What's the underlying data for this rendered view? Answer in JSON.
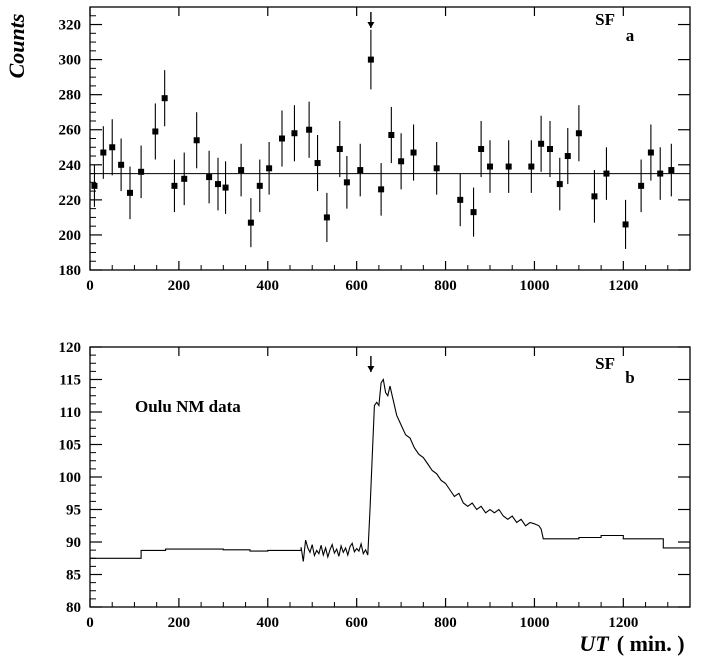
{
  "figure": {
    "ylabel": "Counts",
    "xlabel": "UT",
    "xlabel_unit": "( min. )"
  },
  "panel_a": {
    "label": "a",
    "annotation": "SF"
  },
  "panel_b": {
    "label": "b",
    "annotation": "SF",
    "text": "Oulu NM data"
  },
  "colors": {
    "ink": "#000000",
    "background": "#ffffff"
  },
  "chart_data": [
    {
      "type": "scatter",
      "panel": "a",
      "xlim": [
        0,
        1350
      ],
      "ylim": [
        180,
        330
      ],
      "xticks": [
        0,
        200,
        400,
        600,
        800,
        1000,
        1200
      ],
      "yticks": [
        180,
        200,
        220,
        240,
        260,
        280,
        300,
        320
      ],
      "reference_line_y": 235,
      "flare_time": 632,
      "points": [
        {
          "x": 10,
          "y": 228,
          "err": 12
        },
        {
          "x": 30,
          "y": 247,
          "err": 15
        },
        {
          "x": 50,
          "y": 250,
          "err": 16
        },
        {
          "x": 70,
          "y": 240,
          "err": 15
        },
        {
          "x": 90,
          "y": 224,
          "err": 15
        },
        {
          "x": 115,
          "y": 236,
          "err": 15
        },
        {
          "x": 147,
          "y": 259,
          "err": 16
        },
        {
          "x": 168,
          "y": 278,
          "err": 16
        },
        {
          "x": 190,
          "y": 228,
          "err": 15
        },
        {
          "x": 212,
          "y": 232,
          "err": 15
        },
        {
          "x": 240,
          "y": 254,
          "err": 16
        },
        {
          "x": 268,
          "y": 233,
          "err": 15
        },
        {
          "x": 288,
          "y": 229,
          "err": 15
        },
        {
          "x": 305,
          "y": 227,
          "err": 15
        },
        {
          "x": 340,
          "y": 237,
          "err": 15
        },
        {
          "x": 362,
          "y": 207,
          "err": 14
        },
        {
          "x": 382,
          "y": 228,
          "err": 15
        },
        {
          "x": 403,
          "y": 238,
          "err": 15
        },
        {
          "x": 432,
          "y": 255,
          "err": 16
        },
        {
          "x": 460,
          "y": 258,
          "err": 16
        },
        {
          "x": 493,
          "y": 260,
          "err": 16
        },
        {
          "x": 512,
          "y": 241,
          "err": 16
        },
        {
          "x": 533,
          "y": 210,
          "err": 14
        },
        {
          "x": 562,
          "y": 249,
          "err": 16
        },
        {
          "x": 578,
          "y": 230,
          "err": 15
        },
        {
          "x": 608,
          "y": 237,
          "err": 15
        },
        {
          "x": 632,
          "y": 300,
          "err": 17
        },
        {
          "x": 655,
          "y": 226,
          "err": 15
        },
        {
          "x": 678,
          "y": 257,
          "err": 16
        },
        {
          "x": 700,
          "y": 242,
          "err": 16
        },
        {
          "x": 728,
          "y": 247,
          "err": 16
        },
        {
          "x": 780,
          "y": 238,
          "err": 15
        },
        {
          "x": 833,
          "y": 220,
          "err": 15
        },
        {
          "x": 863,
          "y": 213,
          "err": 14
        },
        {
          "x": 880,
          "y": 249,
          "err": 16
        },
        {
          "x": 900,
          "y": 239,
          "err": 15
        },
        {
          "x": 942,
          "y": 239,
          "err": 15
        },
        {
          "x": 993,
          "y": 239,
          "err": 15
        },
        {
          "x": 1015,
          "y": 252,
          "err": 16
        },
        {
          "x": 1035,
          "y": 249,
          "err": 16
        },
        {
          "x": 1057,
          "y": 229,
          "err": 15
        },
        {
          "x": 1075,
          "y": 245,
          "err": 16
        },
        {
          "x": 1100,
          "y": 258,
          "err": 16
        },
        {
          "x": 1135,
          "y": 222,
          "err": 15
        },
        {
          "x": 1162,
          "y": 235,
          "err": 15
        },
        {
          "x": 1205,
          "y": 206,
          "err": 14
        },
        {
          "x": 1240,
          "y": 228,
          "err": 15
        },
        {
          "x": 1262,
          "y": 247,
          "err": 16
        },
        {
          "x": 1283,
          "y": 235,
          "err": 15
        },
        {
          "x": 1308,
          "y": 237,
          "err": 15
        }
      ]
    },
    {
      "type": "line",
      "panel": "b",
      "xlim": [
        0,
        1350
      ],
      "ylim": [
        80,
        120
      ],
      "xticks": [
        0,
        200,
        400,
        600,
        800,
        1000,
        1200
      ],
      "yticks": [
        80,
        85,
        90,
        95,
        100,
        105,
        110,
        115,
        120
      ],
      "flare_time": 632,
      "x": [
        0,
        115,
        115,
        170,
        170,
        300,
        300,
        360,
        360,
        400,
        400,
        475,
        475,
        480,
        485,
        490,
        495,
        500,
        505,
        510,
        515,
        520,
        525,
        530,
        535,
        540,
        545,
        550,
        555,
        560,
        565,
        570,
        575,
        580,
        585,
        590,
        595,
        600,
        605,
        610,
        615,
        620,
        625,
        630,
        640,
        645,
        650,
        655,
        660,
        665,
        670,
        675,
        680,
        690,
        700,
        710,
        720,
        730,
        740,
        750,
        760,
        770,
        780,
        790,
        800,
        810,
        820,
        830,
        840,
        850,
        860,
        870,
        880,
        890,
        900,
        910,
        920,
        930,
        940,
        950,
        960,
        970,
        980,
        990,
        1000,
        1010,
        1015,
        1020,
        1100,
        1100,
        1150,
        1150,
        1200,
        1200,
        1290,
        1290,
        1350
      ],
      "y": [
        87.5,
        87.5,
        88.7,
        88.7,
        88.9,
        88.9,
        88.8,
        88.8,
        88.6,
        88.6,
        88.7,
        88.7,
        89.2,
        87.0,
        90.3,
        89.1,
        88.4,
        89.6,
        87.9,
        88.7,
        88.2,
        89.5,
        88.0,
        89.1,
        87.7,
        88.8,
        89.6,
        88.3,
        88.9,
        87.8,
        89.4,
        88.4,
        89.1,
        88.0,
        89.3,
        89.8,
        88.5,
        89.0,
        88.6,
        89.7,
        88.2,
        88.8,
        88.0,
        95.0,
        111.0,
        111.5,
        111.0,
        114.5,
        115.0,
        113.0,
        112.5,
        114.0,
        112.5,
        109.5,
        108.0,
        106.5,
        106.0,
        104.5,
        103.5,
        103.0,
        102.0,
        101.0,
        100.5,
        99.5,
        99.0,
        98.0,
        97.0,
        97.5,
        96.0,
        95.5,
        96.0,
        95.0,
        95.5,
        94.5,
        95.0,
        94.5,
        95.0,
        94.0,
        93.5,
        94.0,
        93.0,
        93.5,
        92.5,
        93.0,
        92.8,
        92.5,
        92.0,
        90.5,
        90.5,
        90.7,
        90.7,
        91.0,
        91.0,
        90.5,
        90.5,
        89.1,
        89.1
      ]
    }
  ]
}
